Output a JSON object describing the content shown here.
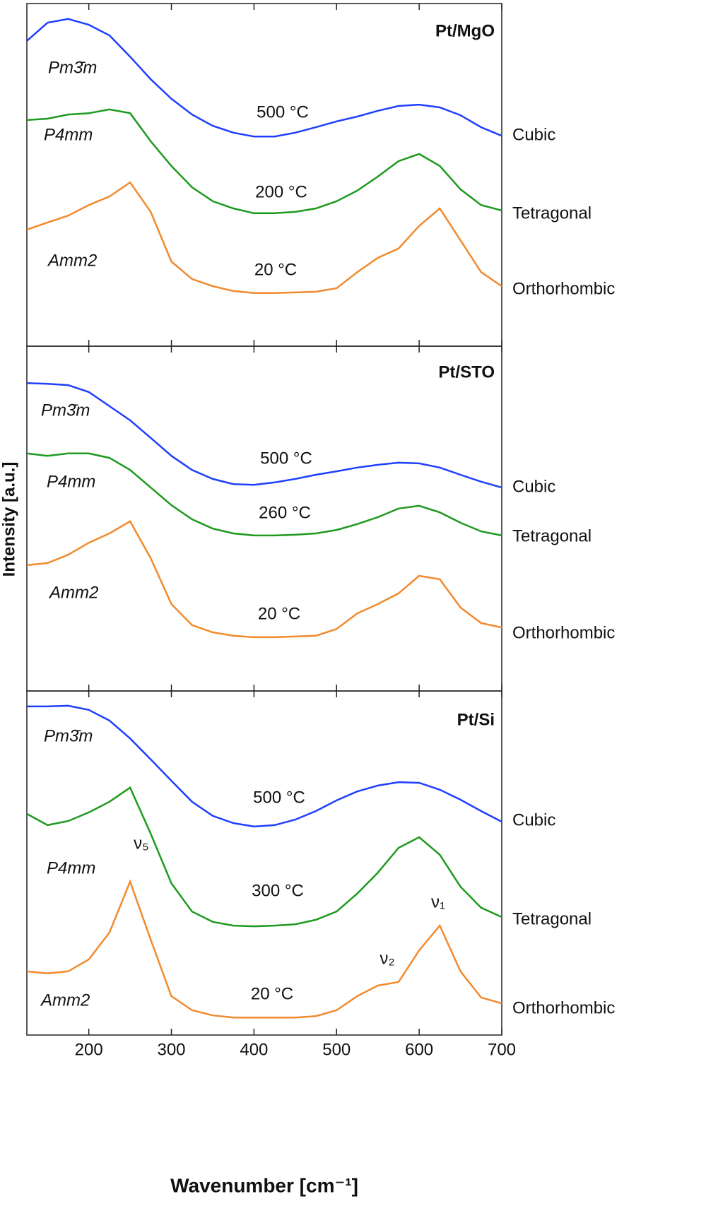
{
  "chart_data": [
    {
      "type": "line",
      "title": "Pt/MgO",
      "x": [
        125,
        150,
        175,
        200,
        225,
        250,
        275,
        300,
        325,
        350,
        375,
        400,
        425,
        450,
        475,
        500,
        525,
        550,
        575,
        600,
        625,
        650,
        675,
        700
      ],
      "series": [
        {
          "name": "Cubic",
          "color": "#1f3fff",
          "values": [
            89.1,
            94.4,
            95.5,
            93.8,
            90.7,
            84.5,
            77.9,
            72.2,
            67.6,
            64.3,
            62.3,
            61.2,
            61.2,
            62.3,
            63.9,
            65.6,
            67.0,
            68.7,
            70.1,
            70.5,
            69.7,
            67.4,
            63.9,
            61.4
          ]
        },
        {
          "name": "Tetragonal",
          "color": "#1e9a1e",
          "values": [
            66.0,
            66.4,
            67.6,
            68.0,
            69.1,
            68.0,
            59.8,
            52.6,
            46.4,
            42.3,
            40.2,
            38.8,
            38.8,
            39.2,
            40.2,
            42.3,
            45.4,
            49.5,
            54.0,
            56.1,
            52.6,
            45.8,
            41.2,
            39.6
          ]
        },
        {
          "name": "Orthorhombic",
          "color": "#f28a2e",
          "values": [
            34.0,
            36.1,
            38.1,
            41.2,
            43.7,
            47.8,
            39.2,
            24.7,
            19.6,
            17.5,
            16.1,
            15.5,
            15.5,
            15.7,
            15.9,
            16.9,
            21.6,
            25.8,
            28.5,
            35.1,
            40.2,
            30.9,
            21.6,
            17.5
          ]
        }
      ],
      "phases": [
        "Pm3̄m",
        "P4mm",
        "Amm2"
      ],
      "temperatures": [
        "500 °C",
        "200 °C",
        "20 °C"
      ],
      "xlim": [
        125,
        700
      ],
      "xticks": [
        200,
        300,
        400,
        500,
        600,
        700
      ],
      "ylim": [
        0,
        100
      ]
    },
    {
      "type": "line",
      "title": "Pt/STO",
      "ylabel": "Intensity [a.u.]",
      "x": [
        125,
        150,
        175,
        200,
        225,
        250,
        275,
        300,
        325,
        350,
        375,
        400,
        425,
        450,
        475,
        500,
        525,
        550,
        575,
        600,
        625,
        650,
        675,
        700
      ],
      "series": [
        {
          "name": "Cubic",
          "color": "#1f3fff",
          "values": [
            89.3,
            89.1,
            88.7,
            86.7,
            82.6,
            78.5,
            73.4,
            68.2,
            64.1,
            61.5,
            60.0,
            59.8,
            60.5,
            61.5,
            62.7,
            63.7,
            64.8,
            65.6,
            66.2,
            66.0,
            64.8,
            62.7,
            60.7,
            59.0
          ]
        },
        {
          "name": "Tetragonal",
          "color": "#1e9a1e",
          "values": [
            68.9,
            68.2,
            68.9,
            68.9,
            67.6,
            64.1,
            59.0,
            53.9,
            49.8,
            47.1,
            45.7,
            45.1,
            45.1,
            45.3,
            45.7,
            46.7,
            48.4,
            50.4,
            52.9,
            53.7,
            51.8,
            48.8,
            46.3,
            45.1
          ]
        },
        {
          "name": "Orthorhombic",
          "color": "#f28a2e",
          "values": [
            36.5,
            37.1,
            39.5,
            43.0,
            45.7,
            49.2,
            38.5,
            25.2,
            19.1,
            17.0,
            16.0,
            15.6,
            15.6,
            15.8,
            16.0,
            18.0,
            22.5,
            25.2,
            28.3,
            33.4,
            32.4,
            24.2,
            19.7,
            18.4
          ]
        }
      ],
      "phases": [
        "Pm3̄m",
        "P4mm",
        "Amm2"
      ],
      "temperatures": [
        "500 °C",
        "260 °C",
        "20 °C"
      ],
      "xlim": [
        125,
        700
      ],
      "xticks": [
        200,
        300,
        400,
        500,
        600,
        700
      ],
      "ylim": [
        0,
        100
      ]
    },
    {
      "type": "line",
      "title": "Pt/Si",
      "xlabel": "Wavenumber [cm⁻¹]",
      "x": [
        125,
        150,
        175,
        200,
        225,
        250,
        275,
        300,
        325,
        350,
        375,
        400,
        425,
        450,
        475,
        500,
        525,
        550,
        575,
        600,
        625,
        650,
        675,
        700
      ],
      "series": [
        {
          "name": "Cubic",
          "color": "#1f3fff",
          "values": [
            95.5,
            95.5,
            95.7,
            94.5,
            91.4,
            86.2,
            80.1,
            73.9,
            67.8,
            63.7,
            61.6,
            60.6,
            61.0,
            62.6,
            65.1,
            68.2,
            70.8,
            72.5,
            73.5,
            73.3,
            71.3,
            68.4,
            65.1,
            62.0
          ]
        },
        {
          "name": "Tetragonal",
          "color": "#1e9a1e",
          "values": [
            64.3,
            61.0,
            62.2,
            64.7,
            67.8,
            71.9,
            58.5,
            44.1,
            35.9,
            32.9,
            31.8,
            31.6,
            31.8,
            32.2,
            33.5,
            35.9,
            41.1,
            47.2,
            54.4,
            57.5,
            52.4,
            43.1,
            37.0,
            34.3
          ]
        },
        {
          "name": "Orthorhombic",
          "color": "#f28a2e",
          "values": [
            18.5,
            17.9,
            18.5,
            22.0,
            29.8,
            44.6,
            27.7,
            11.3,
            7.2,
            5.7,
            5.1,
            5.1,
            5.1,
            5.1,
            5.5,
            7.2,
            11.3,
            14.4,
            15.4,
            24.6,
            31.8,
            18.5,
            10.9,
            9.2
          ]
        }
      ],
      "phases": [
        "Pm3̄m",
        "P4mm",
        "Amm2"
      ],
      "temperatures": [
        "500 °C",
        "300 °C",
        "20 °C"
      ],
      "peaks": [
        "ν₅",
        "ν₂",
        "ν₁"
      ],
      "xlim": [
        125,
        700
      ],
      "xticks": [
        200,
        300,
        400,
        500,
        600,
        700
      ],
      "ylim": [
        0,
        100
      ]
    }
  ]
}
